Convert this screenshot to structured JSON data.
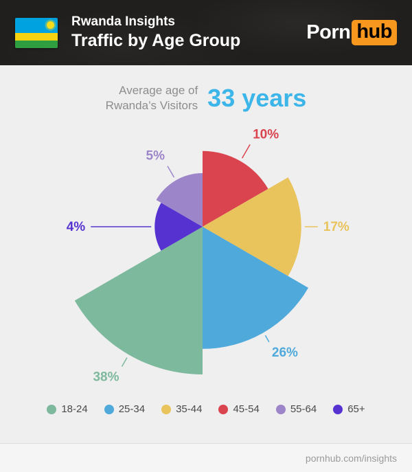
{
  "header": {
    "insights_label": "Rwanda Insights",
    "title": "Traffic by Age Group",
    "logo": {
      "part1": "Porn",
      "part2": "hub"
    }
  },
  "subheader": {
    "caption_line1": "Average age of",
    "caption_line2": "Rwanda’s Visitors",
    "average_age": "33 years"
  },
  "chart_data": {
    "type": "pie",
    "variant": "polar-area-rose",
    "title": "Traffic by Age Group",
    "unit": "%",
    "angle_per_slice_deg": 60,
    "radius_scale": "sqrt",
    "legend_position": "bottom",
    "categories": [
      "18-24",
      "25-34",
      "35-44",
      "45-54",
      "55-64",
      "65+"
    ],
    "values": [
      38,
      26,
      17,
      10,
      5,
      4
    ],
    "slices_clockwise_from_top": [
      {
        "label": "45-54",
        "value": 10,
        "pct_text": "10%",
        "color": "#d9444f"
      },
      {
        "label": "35-44",
        "value": 17,
        "pct_text": "17%",
        "color": "#e9c35c"
      },
      {
        "label": "25-34",
        "value": 26,
        "pct_text": "26%",
        "color": "#4fa9da"
      },
      {
        "label": "18-24",
        "value": 38,
        "pct_text": "38%",
        "color": "#7db99c"
      },
      {
        "label": "65+",
        "value": 4,
        "pct_text": "4%",
        "color": "#5633d1"
      },
      {
        "label": "55-64",
        "value": 5,
        "pct_text": "5%",
        "color": "#9d85c9"
      }
    ],
    "legend": [
      {
        "label": "18-24",
        "color": "#7db99c"
      },
      {
        "label": "25-34",
        "color": "#4fa9da"
      },
      {
        "label": "35-44",
        "color": "#e9c35c"
      },
      {
        "label": "45-54",
        "color": "#d9444f"
      },
      {
        "label": "55-64",
        "color": "#9d85c9"
      },
      {
        "label": "65+",
        "color": "#5633d1"
      }
    ]
  },
  "footer": {
    "link": "pornhub.com/insights"
  }
}
